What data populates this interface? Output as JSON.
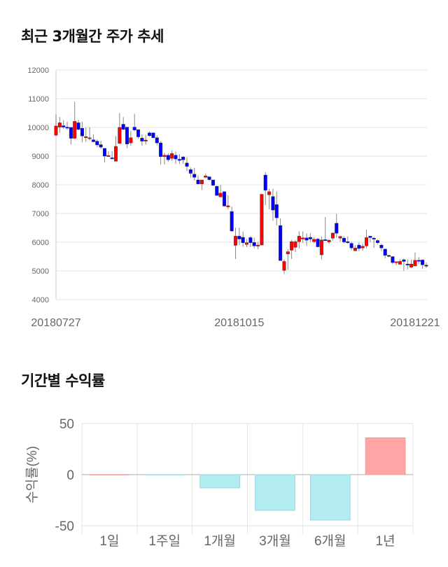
{
  "section1": {
    "title": "최근 3개월간 주가 추세"
  },
  "section2": {
    "title": "기간별 수익률"
  },
  "chart_data": [
    {
      "type": "candlestick",
      "title": "최근 3개월간 주가 추세",
      "ylim": [
        4000,
        12000
      ],
      "yticks": [
        "12000",
        "11000",
        "10000",
        "9000",
        "8000",
        "7000",
        "6000",
        "5000",
        "4000"
      ],
      "xtick_labels": [
        {
          "index": 0,
          "label": "20180727"
        },
        {
          "index": 49,
          "label": "20181015"
        },
        {
          "index": 96,
          "label": "20181221"
        }
      ],
      "colors": {
        "up": "#ff0000",
        "down": "#0000ff"
      },
      "ohlc": [
        [
          9730,
          10460,
          9690,
          10050
        ],
        [
          10010,
          10360,
          9810,
          10160
        ],
        [
          10060,
          10260,
          9940,
          10010
        ],
        [
          10010,
          10200,
          9910,
          9990
        ],
        [
          10000,
          10000,
          9410,
          9620
        ],
        [
          9620,
          10890,
          9600,
          10210
        ],
        [
          10160,
          10260,
          9890,
          9930
        ],
        [
          9970,
          10200,
          9480,
          9700
        ],
        [
          9640,
          10000,
          9500,
          9680
        ],
        [
          9620,
          10000,
          9550,
          9640
        ],
        [
          9570,
          9760,
          9480,
          9500
        ],
        [
          9520,
          9580,
          9310,
          9390
        ],
        [
          9400,
          9540,
          9260,
          9310
        ],
        [
          9270,
          9270,
          8780,
          9000
        ],
        [
          9010,
          9170,
          8980,
          9020
        ],
        [
          8940,
          9170,
          8900,
          8910
        ],
        [
          8820,
          9700,
          8820,
          9340
        ],
        [
          9440,
          10500,
          9440,
          10000
        ],
        [
          10110,
          10360,
          9910,
          9930
        ],
        [
          10010,
          10000,
          9280,
          9420
        ],
        [
          9460,
          9880,
          9360,
          9640
        ],
        [
          10010,
          10470,
          9870,
          9910
        ],
        [
          9920,
          9920,
          9600,
          9670
        ],
        [
          9630,
          9760,
          9360,
          9520
        ],
        [
          9520,
          9740,
          9400,
          9560
        ],
        [
          9810,
          9860,
          9680,
          9710
        ],
        [
          9810,
          9810,
          9620,
          9640
        ],
        [
          9640,
          9720,
          9380,
          9460
        ],
        [
          9460,
          9520,
          8710,
          8980
        ],
        [
          8980,
          9120,
          8710,
          9030
        ],
        [
          9030,
          9100,
          8800,
          8870
        ],
        [
          8920,
          9200,
          8830,
          9090
        ],
        [
          9030,
          9160,
          8730,
          8900
        ],
        [
          8890,
          9070,
          8720,
          8850
        ],
        [
          8970,
          9000,
          8730,
          8870
        ],
        [
          8760,
          8960,
          8480,
          8640
        ],
        [
          8530,
          8600,
          8250,
          8400
        ],
        [
          8370,
          8590,
          8150,
          8260
        ],
        [
          8170,
          8330,
          8020,
          8030
        ],
        [
          8030,
          8170,
          7820,
          8170
        ],
        [
          8260,
          8400,
          8240,
          8310
        ],
        [
          8280,
          8280,
          8140,
          8180
        ],
        [
          8170,
          8170,
          7960,
          7980
        ],
        [
          7950,
          7970,
          7620,
          7630
        ],
        [
          7580,
          7990,
          7560,
          7710
        ],
        [
          7760,
          7770,
          7240,
          7260
        ],
        [
          7230,
          7630,
          7150,
          7270
        ],
        [
          7070,
          7240,
          6370,
          6390
        ],
        [
          5890,
          6500,
          5410,
          6210
        ],
        [
          6210,
          6500,
          5900,
          6110
        ],
        [
          6170,
          6370,
          5840,
          5980
        ],
        [
          5920,
          6110,
          5830,
          5980
        ],
        [
          6160,
          6220,
          5830,
          5980
        ],
        [
          5990,
          6160,
          5790,
          5870
        ],
        [
          5870,
          6010,
          5760,
          5900
        ],
        [
          5900,
          7670,
          5900,
          7670
        ],
        [
          8340,
          8440,
          7290,
          7810
        ],
        [
          7650,
          7860,
          7150,
          7760
        ],
        [
          7590,
          7860,
          6750,
          7120
        ],
        [
          7310,
          7770,
          6590,
          6850
        ],
        [
          6580,
          6830,
          5360,
          5360
        ],
        [
          5020,
          5400,
          4890,
          5330
        ],
        [
          5590,
          5760,
          5040,
          5670
        ],
        [
          5720,
          6080,
          5420,
          6020
        ],
        [
          5820,
          6080,
          5650,
          6020
        ],
        [
          6020,
          6380,
          5780,
          6210
        ],
        [
          6110,
          6380,
          5970,
          6150
        ],
        [
          6150,
          6310,
          5870,
          6070
        ],
        [
          6170,
          6310,
          6010,
          6110
        ],
        [
          6020,
          6180,
          5960,
          6100
        ],
        [
          6110,
          6150,
          5820,
          5840
        ],
        [
          5560,
          6200,
          5400,
          6080
        ],
        [
          6090,
          6880,
          6040,
          6070
        ],
        [
          6010,
          6100,
          5940,
          6070
        ],
        [
          6140,
          6330,
          6060,
          6320
        ],
        [
          6660,
          6990,
          6150,
          6310
        ],
        [
          6140,
          6220,
          6020,
          6200
        ],
        [
          6140,
          6200,
          5960,
          6010
        ],
        [
          6020,
          6200,
          5950,
          5980
        ],
        [
          5960,
          6020,
          5720,
          5800
        ],
        [
          5700,
          5900,
          5690,
          5800
        ],
        [
          5900,
          5990,
          5690,
          5780
        ],
        [
          5800,
          5960,
          5700,
          5860
        ],
        [
          5870,
          6440,
          5780,
          6160
        ],
        [
          6210,
          6210,
          6000,
          6160
        ],
        [
          6140,
          6190,
          5800,
          6110
        ],
        [
          6060,
          6100,
          5930,
          5980
        ],
        [
          5900,
          5940,
          5690,
          5800
        ],
        [
          5760,
          5760,
          5440,
          5540
        ],
        [
          5540,
          5560,
          5480,
          5520
        ],
        [
          5500,
          5500,
          5240,
          5290
        ],
        [
          5290,
          5330,
          5210,
          5320
        ],
        [
          5230,
          5410,
          5230,
          5330
        ],
        [
          5390,
          5430,
          5000,
          5330
        ],
        [
          5240,
          5400,
          5050,
          5220
        ],
        [
          5130,
          5400,
          5100,
          5240
        ],
        [
          5170,
          5640,
          5170,
          5370
        ],
        [
          5370,
          5480,
          5250,
          5350
        ],
        [
          5380,
          5400,
          5080,
          5210
        ],
        [
          5200,
          5300,
          5100,
          5190
        ]
      ]
    },
    {
      "type": "bar",
      "title": "기간별 수익률",
      "ylabel": "수익률(%)",
      "ylim": [
        -50,
        50
      ],
      "yticks": [
        "50",
        "0",
        "-50"
      ],
      "categories": [
        "1일",
        "1주일",
        "1개월",
        "3개월",
        "6개월",
        "1년"
      ],
      "values": [
        0,
        -0.3,
        -13,
        -35,
        -44.5,
        36
      ],
      "colors": {
        "positive": "#ffa5a5",
        "negative": "#b2ebf2"
      }
    }
  ]
}
